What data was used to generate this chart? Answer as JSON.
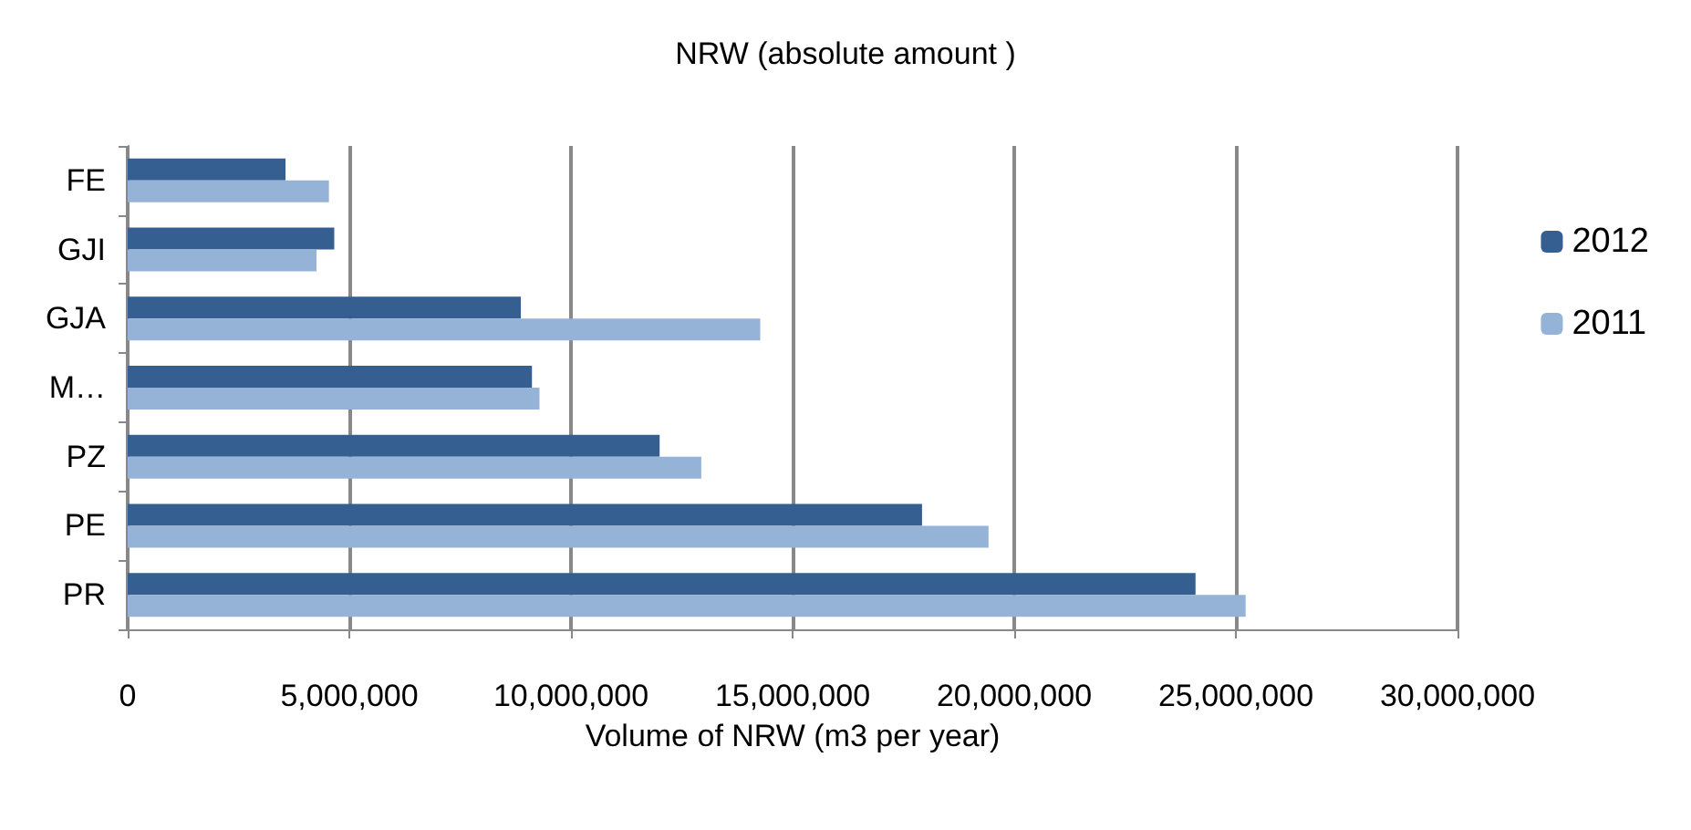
{
  "chart_data": {
    "type": "bar",
    "orientation": "horizontal",
    "title": "NRW (absolute amount )",
    "xlabel": "Volume of NRW (m3 per year)",
    "categories": [
      "FE",
      "GJI",
      "GJA",
      "M…",
      "PZ",
      "PE",
      "PR"
    ],
    "series": [
      {
        "name": "2012",
        "color": "#365f91",
        "values": [
          3560000,
          4660000,
          8870000,
          9120000,
          12000000,
          17920000,
          24090000
        ]
      },
      {
        "name": "2011",
        "color": "#95b3d7",
        "values": [
          4540000,
          4260000,
          14270000,
          9290000,
          12940000,
          19420000,
          25220000
        ]
      }
    ],
    "xlim": [
      0,
      30000000
    ],
    "xticks": [
      0,
      {
        "value": 5000000,
        "label": "5,000,000"
      },
      {
        "value": 10000000,
        "label": "10,000,000"
      },
      {
        "value": 15000000,
        "label": "15,000,000"
      },
      {
        "value": 20000000,
        "label": "20,000,000"
      },
      {
        "value": 25000000,
        "label": "25,000,000"
      },
      {
        "value": 30000000,
        "label": "30,000,000"
      }
    ],
    "grid": "x",
    "legend": "right"
  }
}
